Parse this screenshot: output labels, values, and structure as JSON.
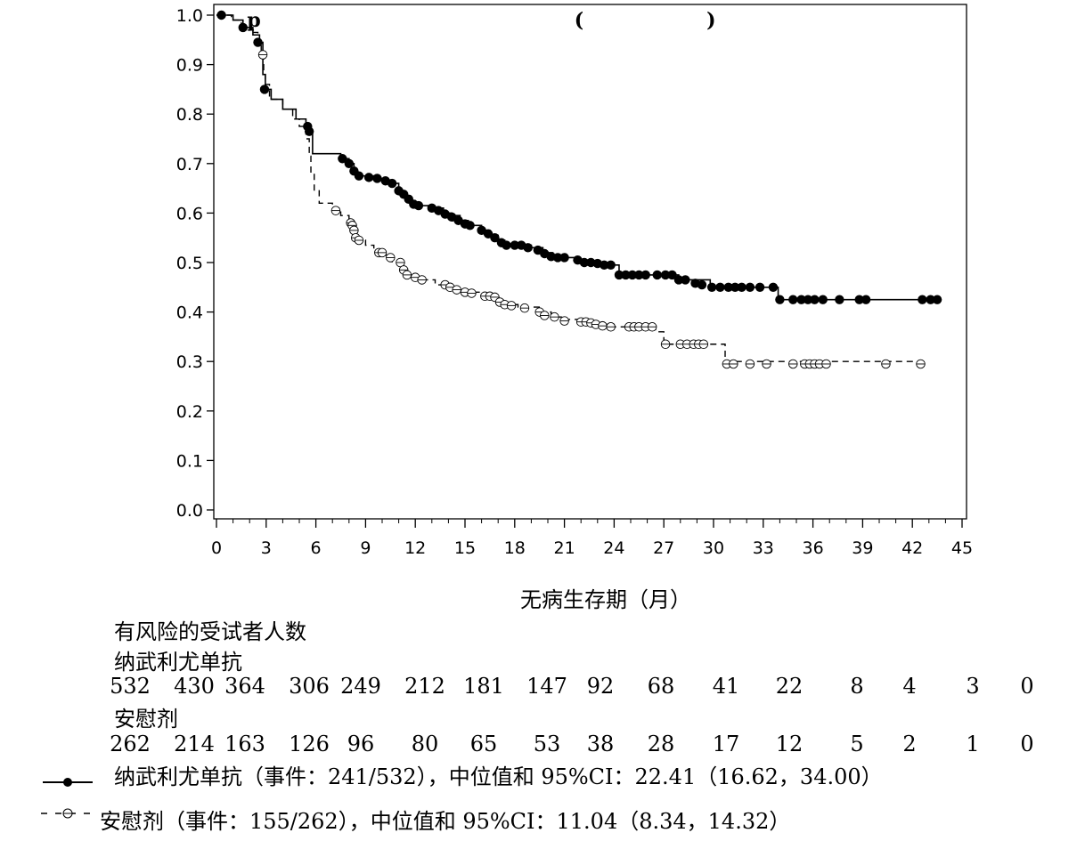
{
  "title_fragments": [
    "p",
    "(",
    ")"
  ],
  "chart_data": {
    "type": "line",
    "subtype": "kaplan-meier",
    "xlabel": "无病生存期（月）",
    "ylabel": "",
    "xlim": [
      0,
      45
    ],
    "ylim": [
      0,
      1.0
    ],
    "xticks": [
      0,
      3,
      6,
      9,
      12,
      15,
      18,
      21,
      24,
      27,
      30,
      33,
      36,
      39,
      42,
      45
    ],
    "yticks": [
      "0.0",
      "0.1",
      "0.2",
      "0.3",
      "0.4",
      "0.5",
      "0.6",
      "0.7",
      "0.8",
      "0.9",
      "1.0"
    ],
    "grid": false,
    "series": [
      {
        "name": "纳武利尤单抗",
        "style": "solid",
        "marker": "filled-circle",
        "color": "#000000",
        "steps": [
          [
            0,
            1.0
          ],
          [
            1.0,
            0.99
          ],
          [
            1.6,
            0.975
          ],
          [
            2.2,
            0.96
          ],
          [
            2.6,
            0.945
          ],
          [
            2.8,
            0.88
          ],
          [
            2.95,
            0.85
          ],
          [
            3.3,
            0.83
          ],
          [
            4.0,
            0.81
          ],
          [
            4.8,
            0.79
          ],
          [
            5.4,
            0.78
          ],
          [
            5.6,
            0.765
          ],
          [
            5.8,
            0.72
          ],
          [
            7.5,
            0.71
          ],
          [
            8.0,
            0.7
          ],
          [
            8.3,
            0.68
          ],
          [
            8.6,
            0.675
          ],
          [
            9.5,
            0.67
          ],
          [
            10.2,
            0.665
          ],
          [
            10.6,
            0.66
          ],
          [
            11.0,
            0.645
          ],
          [
            11.3,
            0.635
          ],
          [
            11.7,
            0.625
          ],
          [
            12.0,
            0.615
          ],
          [
            13.0,
            0.61
          ],
          [
            13.7,
            0.6
          ],
          [
            14.2,
            0.595
          ],
          [
            14.7,
            0.585
          ],
          [
            15.2,
            0.575
          ],
          [
            16.0,
            0.565
          ],
          [
            16.5,
            0.555
          ],
          [
            17.0,
            0.545
          ],
          [
            17.4,
            0.535
          ],
          [
            19.0,
            0.53
          ],
          [
            19.7,
            0.52
          ],
          [
            20.3,
            0.51
          ],
          [
            21.7,
            0.505
          ],
          [
            22.4,
            0.5
          ],
          [
            23.2,
            0.495
          ],
          [
            24.3,
            0.475
          ],
          [
            27.9,
            0.465
          ],
          [
            29.8,
            0.45
          ],
          [
            33.9,
            0.425
          ],
          [
            43.6,
            0.425
          ]
        ],
        "censored": [
          [
            0.3,
            1.0
          ],
          [
            1.6,
            0.975
          ],
          [
            2.5,
            0.945
          ],
          [
            2.9,
            0.85
          ],
          [
            5.5,
            0.775
          ],
          [
            5.6,
            0.765
          ],
          [
            7.6,
            0.71
          ],
          [
            8.0,
            0.7
          ],
          [
            8.3,
            0.685
          ],
          [
            8.6,
            0.675
          ],
          [
            9.2,
            0.672
          ],
          [
            9.7,
            0.67
          ],
          [
            10.2,
            0.665
          ],
          [
            10.6,
            0.66
          ],
          [
            11.0,
            0.645
          ],
          [
            11.3,
            0.638
          ],
          [
            11.6,
            0.628
          ],
          [
            11.9,
            0.618
          ],
          [
            12.2,
            0.615
          ],
          [
            13.0,
            0.61
          ],
          [
            13.4,
            0.605
          ],
          [
            13.8,
            0.598
          ],
          [
            14.2,
            0.592
          ],
          [
            14.6,
            0.585
          ],
          [
            15.0,
            0.578
          ],
          [
            15.3,
            0.575
          ],
          [
            16.0,
            0.565
          ],
          [
            16.4,
            0.558
          ],
          [
            16.8,
            0.55
          ],
          [
            17.2,
            0.54
          ],
          [
            17.5,
            0.535
          ],
          [
            18.0,
            0.535
          ],
          [
            18.4,
            0.535
          ],
          [
            18.8,
            0.53
          ],
          [
            19.4,
            0.525
          ],
          [
            19.8,
            0.518
          ],
          [
            20.2,
            0.512
          ],
          [
            20.6,
            0.51
          ],
          [
            21.0,
            0.51
          ],
          [
            21.8,
            0.505
          ],
          [
            22.2,
            0.5
          ],
          [
            22.6,
            0.5
          ],
          [
            23.0,
            0.498
          ],
          [
            23.4,
            0.495
          ],
          [
            23.8,
            0.495
          ],
          [
            24.3,
            0.475
          ],
          [
            24.7,
            0.475
          ],
          [
            25.1,
            0.475
          ],
          [
            25.5,
            0.475
          ],
          [
            25.9,
            0.475
          ],
          [
            26.6,
            0.475
          ],
          [
            27.1,
            0.475
          ],
          [
            27.5,
            0.475
          ],
          [
            27.9,
            0.465
          ],
          [
            28.3,
            0.465
          ],
          [
            28.9,
            0.458
          ],
          [
            29.3,
            0.455
          ],
          [
            29.9,
            0.45
          ],
          [
            30.4,
            0.45
          ],
          [
            30.9,
            0.45
          ],
          [
            31.3,
            0.45
          ],
          [
            31.7,
            0.45
          ],
          [
            32.2,
            0.45
          ],
          [
            32.8,
            0.45
          ],
          [
            33.6,
            0.45
          ],
          [
            34.0,
            0.425
          ],
          [
            34.8,
            0.425
          ],
          [
            35.3,
            0.425
          ],
          [
            35.7,
            0.425
          ],
          [
            36.1,
            0.425
          ],
          [
            36.6,
            0.425
          ],
          [
            37.6,
            0.425
          ],
          [
            38.8,
            0.425
          ],
          [
            39.2,
            0.425
          ],
          [
            42.6,
            0.425
          ],
          [
            43.1,
            0.425
          ],
          [
            43.5,
            0.425
          ]
        ]
      },
      {
        "name": "安慰剂",
        "style": "dashed",
        "marker": "open-circle",
        "color": "#000000",
        "steps": [
          [
            0,
            1.0
          ],
          [
            0.9,
            0.99
          ],
          [
            1.5,
            0.98
          ],
          [
            2.0,
            0.965
          ],
          [
            2.5,
            0.94
          ],
          [
            2.7,
            0.915
          ],
          [
            2.85,
            0.88
          ],
          [
            2.95,
            0.86
          ],
          [
            3.2,
            0.83
          ],
          [
            4.0,
            0.81
          ],
          [
            4.6,
            0.79
          ],
          [
            5.0,
            0.775
          ],
          [
            5.4,
            0.75
          ],
          [
            5.6,
            0.715
          ],
          [
            5.7,
            0.68
          ],
          [
            5.9,
            0.645
          ],
          [
            6.2,
            0.62
          ],
          [
            7.0,
            0.61
          ],
          [
            7.5,
            0.595
          ],
          [
            8.0,
            0.58
          ],
          [
            8.2,
            0.56
          ],
          [
            8.5,
            0.545
          ],
          [
            9.0,
            0.535
          ],
          [
            9.5,
            0.525
          ],
          [
            10.0,
            0.515
          ],
          [
            10.6,
            0.5
          ],
          [
            11.0,
            0.485
          ],
          [
            11.6,
            0.47
          ],
          [
            12.3,
            0.465
          ],
          [
            13.2,
            0.455
          ],
          [
            14.2,
            0.445
          ],
          [
            15.0,
            0.44
          ],
          [
            16.0,
            0.435
          ],
          [
            16.8,
            0.425
          ],
          [
            17.3,
            0.415
          ],
          [
            18.2,
            0.41
          ],
          [
            19.6,
            0.4
          ],
          [
            20.2,
            0.39
          ],
          [
            21.0,
            0.385
          ],
          [
            22.0,
            0.38
          ],
          [
            23.0,
            0.375
          ],
          [
            24.0,
            0.37
          ],
          [
            26.5,
            0.36
          ],
          [
            27.0,
            0.335
          ],
          [
            30.7,
            0.3
          ],
          [
            42.5,
            0.3
          ]
        ],
        "censored": [
          [
            2.8,
            0.92
          ],
          [
            7.2,
            0.605
          ],
          [
            8.1,
            0.58
          ],
          [
            8.2,
            0.575
          ],
          [
            8.3,
            0.565
          ],
          [
            8.4,
            0.55
          ],
          [
            8.6,
            0.545
          ],
          [
            9.8,
            0.52
          ],
          [
            10.0,
            0.52
          ],
          [
            10.5,
            0.51
          ],
          [
            11.1,
            0.5
          ],
          [
            11.3,
            0.485
          ],
          [
            11.5,
            0.475
          ],
          [
            12.0,
            0.47
          ],
          [
            12.4,
            0.465
          ],
          [
            13.8,
            0.455
          ],
          [
            14.1,
            0.45
          ],
          [
            14.5,
            0.445
          ],
          [
            15.0,
            0.44
          ],
          [
            15.4,
            0.438
          ],
          [
            16.2,
            0.432
          ],
          [
            16.5,
            0.432
          ],
          [
            16.8,
            0.43
          ],
          [
            17.1,
            0.42
          ],
          [
            17.4,
            0.415
          ],
          [
            17.8,
            0.413
          ],
          [
            18.6,
            0.408
          ],
          [
            19.5,
            0.4
          ],
          [
            19.8,
            0.393
          ],
          [
            20.4,
            0.39
          ],
          [
            21.0,
            0.382
          ],
          [
            22.0,
            0.38
          ],
          [
            22.3,
            0.38
          ],
          [
            22.6,
            0.378
          ],
          [
            22.9,
            0.375
          ],
          [
            23.3,
            0.372
          ],
          [
            23.8,
            0.37
          ],
          [
            24.9,
            0.37
          ],
          [
            25.2,
            0.37
          ],
          [
            25.5,
            0.37
          ],
          [
            25.9,
            0.37
          ],
          [
            26.3,
            0.37
          ],
          [
            27.1,
            0.335
          ],
          [
            28.0,
            0.335
          ],
          [
            28.4,
            0.335
          ],
          [
            28.8,
            0.335
          ],
          [
            29.1,
            0.335
          ],
          [
            29.4,
            0.335
          ],
          [
            30.8,
            0.295
          ],
          [
            31.2,
            0.295
          ],
          [
            32.2,
            0.295
          ],
          [
            33.2,
            0.295
          ],
          [
            34.8,
            0.295
          ],
          [
            35.5,
            0.295
          ],
          [
            35.8,
            0.295
          ],
          [
            36.1,
            0.295
          ],
          [
            36.4,
            0.295
          ],
          [
            36.8,
            0.295
          ],
          [
            40.4,
            0.295
          ],
          [
            42.5,
            0.295
          ]
        ]
      }
    ]
  },
  "risk_table": {
    "heading": "有风险的受试者人数",
    "groups": [
      {
        "label": "纳武利尤单抗",
        "counts": [
          "532",
          "430",
          "364",
          "306",
          "249",
          "212",
          "181",
          "147",
          "92",
          "68",
          "41",
          "22",
          "8",
          "4",
          "3",
          "0"
        ]
      },
      {
        "label": "安慰剂",
        "counts": [
          "262",
          "214",
          "163",
          "126",
          "96",
          "80",
          "65",
          "53",
          "38",
          "28",
          "17",
          "12",
          "5",
          "2",
          "1",
          "0"
        ]
      }
    ]
  },
  "legend": {
    "entries": [
      {
        "text": "纳武利尤单抗（事件：241/532），中位值和 95%CI：22.41（16.62，34.00）",
        "style": "solid",
        "marker": "filled-circle"
      },
      {
        "text": "安慰剂（事件：155/262），中位值和 95%CI：11.04（8.34，14.32）",
        "style": "dashed",
        "marker": "open-circle"
      }
    ]
  }
}
